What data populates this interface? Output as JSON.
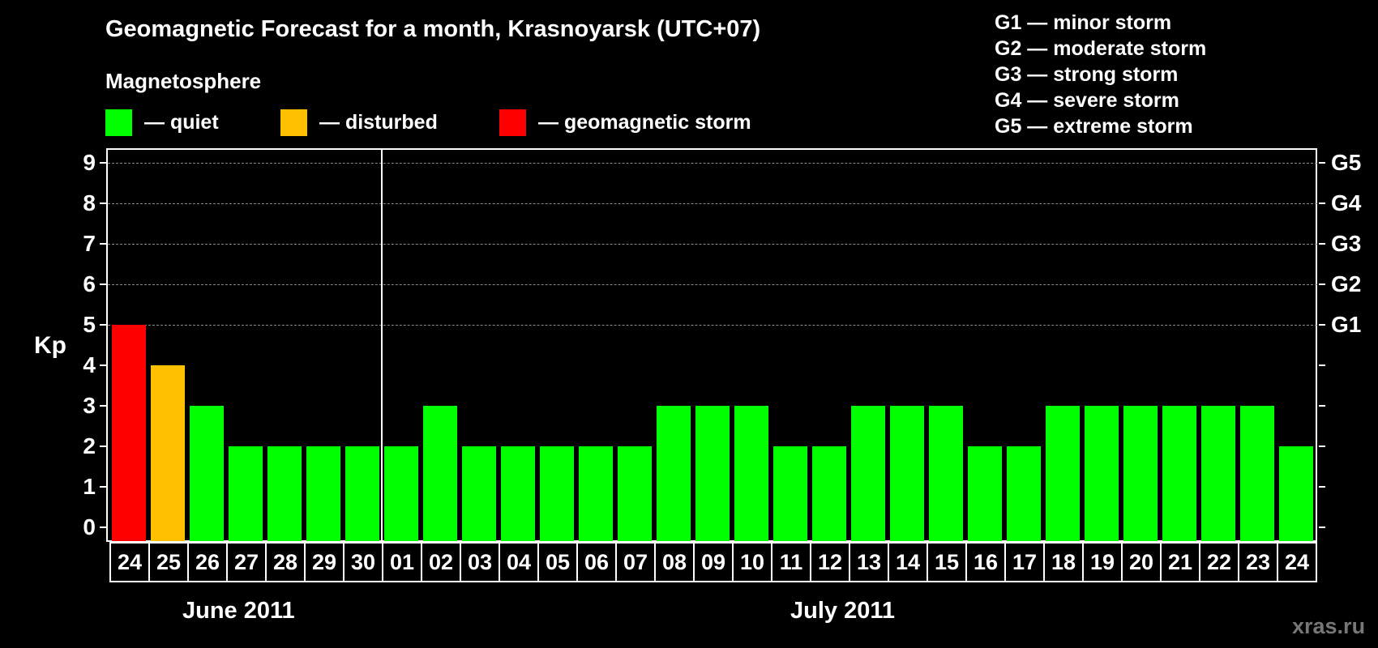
{
  "header": {
    "title": "Geomagnetic Forecast for a month, Krasnoyarsk (UTC+07)",
    "subtitle": "Magnetosphere"
  },
  "legend": [
    {
      "label": "— quiet",
      "color": "#00ff00"
    },
    {
      "label": "— disturbed",
      "color": "#ffc000"
    },
    {
      "label": "— geomagnetic storm",
      "color": "#ff0000"
    }
  ],
  "storm_scale": [
    "G1 — minor storm",
    "G2 — moderate storm",
    "G3 — strong storm",
    "G4 — severe storm",
    "G5 — extreme storm"
  ],
  "axis": {
    "ylabel": "Kp",
    "left_ticks": [
      "0",
      "1",
      "2",
      "3",
      "4",
      "5",
      "6",
      "7",
      "8",
      "9"
    ],
    "right_ticks": [
      {
        "kp": 5,
        "label": "G1"
      },
      {
        "kp": 6,
        "label": "G2"
      },
      {
        "kp": 7,
        "label": "G3"
      },
      {
        "kp": 8,
        "label": "G4"
      },
      {
        "kp": 9,
        "label": "G5"
      }
    ]
  },
  "months": [
    {
      "label": "June 2011"
    },
    {
      "label": "July 2011"
    }
  ],
  "watermark": "xras.ru",
  "chart_data": {
    "type": "bar",
    "title": "Geomagnetic Forecast for a month, Krasnoyarsk (UTC+07)",
    "subtitle": "Magnetosphere",
    "xlabel": "",
    "ylabel": "Kp",
    "ylim": [
      0,
      9
    ],
    "grid": "dashed horizontal lines at Kp 5-9",
    "secondary_axis": {
      "5": "G1",
      "6": "G2",
      "7": "G3",
      "8": "G4",
      "9": "G5"
    },
    "categories": [
      "24",
      "25",
      "26",
      "27",
      "28",
      "29",
      "30",
      "01",
      "02",
      "03",
      "04",
      "05",
      "06",
      "07",
      "08",
      "09",
      "10",
      "11",
      "12",
      "13",
      "14",
      "15",
      "16",
      "17",
      "18",
      "19",
      "20",
      "21",
      "22",
      "23",
      "24"
    ],
    "month_groups": [
      {
        "label": "June 2011",
        "days": [
          "24",
          "25",
          "26",
          "27",
          "28",
          "29",
          "30"
        ]
      },
      {
        "label": "July 2011",
        "days": [
          "01",
          "02",
          "03",
          "04",
          "05",
          "06",
          "07",
          "08",
          "09",
          "10",
          "11",
          "12",
          "13",
          "14",
          "15",
          "16",
          "17",
          "18",
          "19",
          "20",
          "21",
          "22",
          "23",
          "24"
        ]
      }
    ],
    "values": [
      5,
      4,
      3,
      2,
      2,
      2,
      2,
      2,
      3,
      2,
      2,
      2,
      2,
      2,
      3,
      3,
      3,
      2,
      2,
      3,
      3,
      3,
      2,
      2,
      3,
      3,
      3,
      3,
      3,
      3,
      2
    ],
    "status": [
      "storm",
      "disturbed",
      "quiet",
      "quiet",
      "quiet",
      "quiet",
      "quiet",
      "quiet",
      "quiet",
      "quiet",
      "quiet",
      "quiet",
      "quiet",
      "quiet",
      "quiet",
      "quiet",
      "quiet",
      "quiet",
      "quiet",
      "quiet",
      "quiet",
      "quiet",
      "quiet",
      "quiet",
      "quiet",
      "quiet",
      "quiet",
      "quiet",
      "quiet",
      "quiet",
      "quiet"
    ],
    "legend": [
      {
        "label": "quiet",
        "color": "#00ff00"
      },
      {
        "label": "disturbed",
        "color": "#ffc000"
      },
      {
        "label": "geomagnetic storm",
        "color": "#ff0000"
      }
    ],
    "legend_position": "top"
  }
}
